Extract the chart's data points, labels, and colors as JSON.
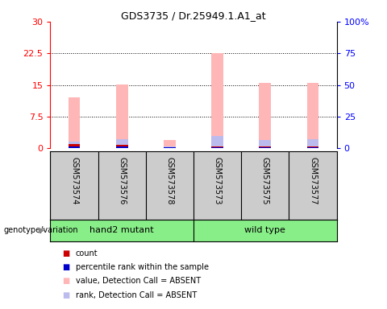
{
  "title": "GDS3735 / Dr.25949.1.A1_at",
  "samples": [
    "GSM573574",
    "GSM573576",
    "GSM573578",
    "GSM573573",
    "GSM573575",
    "GSM573577"
  ],
  "bar_width": 0.25,
  "ylim_left": [
    0,
    30
  ],
  "ylim_right": [
    0,
    100
  ],
  "yticks_left": [
    0,
    7.5,
    15,
    22.5,
    30
  ],
  "ytick_labels_left": [
    "0",
    "7.5",
    "15",
    "22.5",
    "30"
  ],
  "yticks_right": [
    0,
    25,
    50,
    75,
    100
  ],
  "ytick_labels_right": [
    "0",
    "25",
    "50",
    "75",
    "100%"
  ],
  "value_absent": [
    12.0,
    15.2,
    2.0,
    22.5,
    15.5,
    15.5
  ],
  "rank_absent": [
    1.5,
    2.2,
    0.5,
    3.0,
    2.0,
    2.2
  ],
  "count_value": [
    1.0,
    0.8,
    0.3,
    0.5,
    0.5,
    0.5
  ],
  "percentile_value": [
    0.5,
    0.5,
    0.2,
    0.3,
    0.3,
    0.3
  ],
  "color_value_absent": "#FFB6B6",
  "color_rank_absent": "#BBBBEE",
  "color_count": "#CC0000",
  "color_percentile": "#0000CC",
  "color_sample_bg": "#CCCCCC",
  "color_group_bg": "#88EE88",
  "legend_items": [
    {
      "label": "count",
      "color": "#CC0000"
    },
    {
      "label": "percentile rank within the sample",
      "color": "#0000CC"
    },
    {
      "label": "value, Detection Call = ABSENT",
      "color": "#FFB6B6"
    },
    {
      "label": "rank, Detection Call = ABSENT",
      "color": "#BBBBEE"
    }
  ]
}
